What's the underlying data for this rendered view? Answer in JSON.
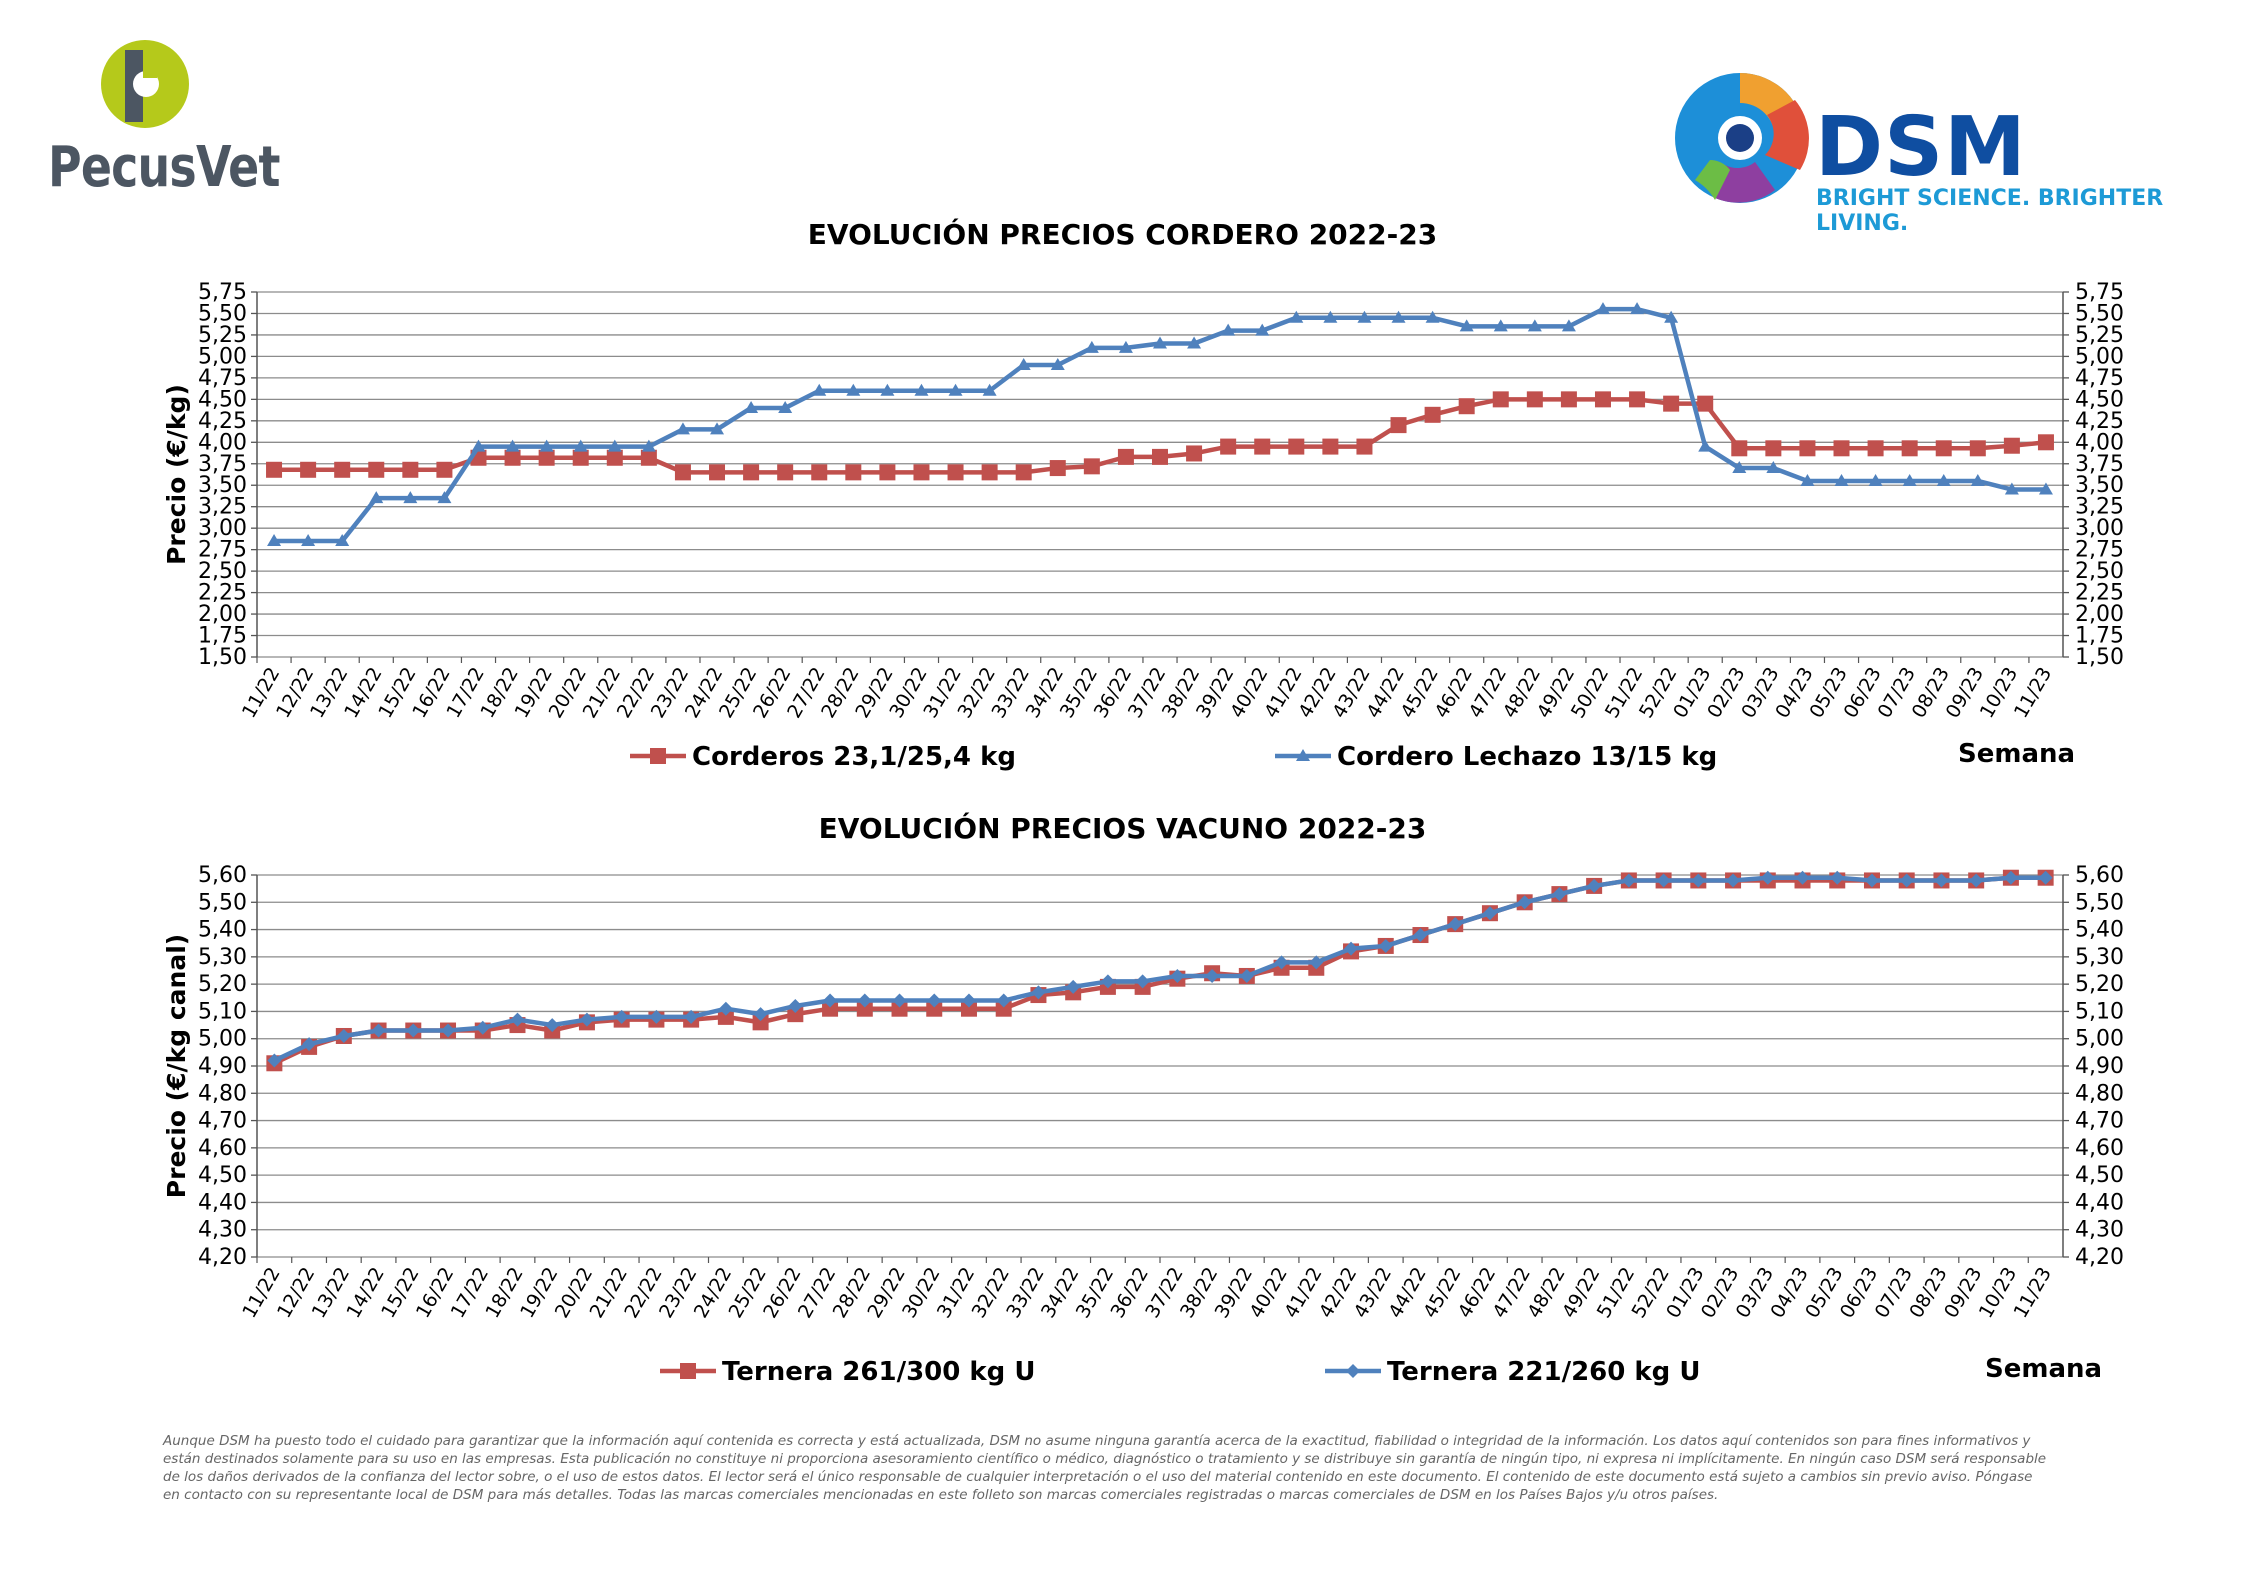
{
  "logos": {
    "pecusvet": "PecusVet",
    "dsm_name": "DSM",
    "dsm_tagline": "BRIGHT SCIENCE. BRIGHTER LIVING.",
    "colors": {
      "pecus_green": "#b5c91b",
      "pecus_gray": "#4c5662",
      "dsm_blue": "#0f4ea1",
      "dsm_light_blue": "#1d9ad6"
    }
  },
  "disclaimer": "Aunque DSM ha puesto todo el cuidado para garantizar que la información aquí contenida es correcta y está actualizada, DSM no asume ninguna garantía acerca de la exactitud, fiabilidad o integridad de la información. Los datos aquí contenidos son para fines informativos y están destinados solamente para su uso en las empresas. Esta publicación no constituye ni proporciona asesoramiento científico o médico, diagnóstico o tratamiento y se distribuye sin garantía de ningún tipo, ni expresa ni implícitamente. En ningún caso DSM será responsable de los daños derivados de la confianza del lector sobre, o el uso de estos datos. El lector será el único responsable de cualquier interpretación o el uso del material contenido en este documento. El contenido de este documento está sujeto a cambios sin previo aviso. Póngase en contacto con su representante local de DSM para más detalles. Todas las marcas comerciales mencionadas en este folleto son marcas comerciales registradas o marcas comerciales de DSM en los Países Bajos y/u otros países.",
  "chart_data": [
    {
      "type": "line",
      "title": "EVOLUCIÓN PRECIOS CORDERO 2022-23",
      "ylabel": "Precio (€/kg)",
      "xlabel": "Semana",
      "ylim": [
        1.5,
        5.75
      ],
      "yticks": [
        "1,50",
        "1,75",
        "2,00",
        "2,25",
        "2,50",
        "2,75",
        "3,00",
        "3,25",
        "3,50",
        "3,75",
        "4,00",
        "4,25",
        "4,50",
        "4,75",
        "5,00",
        "5,25",
        "5,50",
        "5,75"
      ],
      "grid": true,
      "secondary_axis": true,
      "legend_position": "bottom",
      "categories": [
        "11/22",
        "12/22",
        "13/22",
        "14/22",
        "15/22",
        "16/22",
        "17/22",
        "18/22",
        "19/22",
        "20/22",
        "21/22",
        "22/22",
        "23/22",
        "24/22",
        "25/22",
        "26/22",
        "27/22",
        "28/22",
        "29/22",
        "30/22",
        "31/22",
        "32/22",
        "33/22",
        "34/22",
        "35/22",
        "36/22",
        "37/22",
        "38/22",
        "39/22",
        "40/22",
        "41/22",
        "42/22",
        "43/22",
        "44/22",
        "45/22",
        "46/22",
        "47/22",
        "48/22",
        "49/22",
        "50/22",
        "51/22",
        "52/22",
        "01/23",
        "02/23",
        "03/23",
        "04/23",
        "05/23",
        "06/23",
        "07/23",
        "08/23",
        "09/23",
        "10/23",
        "11/23"
      ],
      "series": [
        {
          "name": "Corderos 23,1/25,4 kg",
          "color": "#c0504d",
          "marker": "square",
          "values": [
            3.68,
            3.68,
            3.68,
            3.68,
            3.68,
            3.68,
            3.82,
            3.82,
            3.82,
            3.82,
            3.82,
            3.82,
            3.65,
            3.65,
            3.65,
            3.65,
            3.65,
            3.65,
            3.65,
            3.65,
            3.65,
            3.65,
            3.65,
            3.7,
            3.72,
            3.83,
            3.83,
            3.87,
            3.95,
            3.95,
            3.95,
            3.95,
            3.95,
            4.2,
            4.32,
            4.42,
            4.5,
            4.5,
            4.5,
            4.5,
            4.5,
            4.45,
            4.45,
            3.93,
            3.93,
            3.93,
            3.93,
            3.93,
            3.93,
            3.93,
            3.93,
            3.96,
            4.0
          ]
        },
        {
          "name": "Cordero Lechazo 13/15 kg",
          "color": "#4f81bd",
          "marker": "triangle",
          "values": [
            2.85,
            2.85,
            2.85,
            3.35,
            3.35,
            3.35,
            3.95,
            3.95,
            3.95,
            3.95,
            3.95,
            3.95,
            4.15,
            4.15,
            4.4,
            4.4,
            4.6,
            4.6,
            4.6,
            4.6,
            4.6,
            4.6,
            4.9,
            4.9,
            5.1,
            5.1,
            5.15,
            5.15,
            5.3,
            5.3,
            5.45,
            5.45,
            5.45,
            5.45,
            5.45,
            5.35,
            5.35,
            5.35,
            5.35,
            5.55,
            5.55,
            5.45,
            3.95,
            3.7,
            3.7,
            3.55,
            3.55,
            3.55,
            3.55,
            3.55,
            3.55,
            3.45,
            3.45
          ]
        }
      ]
    },
    {
      "type": "line",
      "title": "EVOLUCIÓN PRECIOS VACUNO 2022-23",
      "ylabel": "Precio (€/kg canal)",
      "xlabel": "Semana",
      "ylim": [
        4.2,
        5.6
      ],
      "yticks": [
        "4,20",
        "4,30",
        "4,40",
        "4,50",
        "4,60",
        "4,70",
        "4,80",
        "4,90",
        "5,00",
        "5,10",
        "5,20",
        "5,30",
        "5,40",
        "5,50",
        "5,60"
      ],
      "grid": true,
      "secondary_axis": true,
      "legend_position": "bottom",
      "categories": [
        "11/22",
        "12/22",
        "13/22",
        "14/22",
        "15/22",
        "16/22",
        "17/22",
        "18/22",
        "19/22",
        "20/22",
        "21/22",
        "22/22",
        "23/22",
        "24/22",
        "25/22",
        "26/22",
        "27/22",
        "28/22",
        "29/22",
        "30/22",
        "31/22",
        "32/22",
        "33/22",
        "34/22",
        "35/22",
        "36/22",
        "37/22",
        "38/22",
        "39/22",
        "40/22",
        "41/22",
        "42/22",
        "43/22",
        "44/22",
        "45/22",
        "46/22",
        "47/22",
        "48/22",
        "49/22",
        "51/22",
        "52/22",
        "01/23",
        "02/23",
        "03/23",
        "04/23",
        "05/23",
        "06/23",
        "07/23",
        "08/23",
        "09/23",
        "10/23",
        "11/23"
      ],
      "series": [
        {
          "name": "Ternera 261/300 kg U",
          "color": "#c0504d",
          "marker": "square",
          "values": [
            4.91,
            4.97,
            5.01,
            5.03,
            5.03,
            5.03,
            5.03,
            5.05,
            5.03,
            5.06,
            5.07,
            5.07,
            5.07,
            5.08,
            5.06,
            5.09,
            5.11,
            5.11,
            5.11,
            5.11,
            5.11,
            5.11,
            5.16,
            5.17,
            5.19,
            5.19,
            5.22,
            5.24,
            5.23,
            5.26,
            5.26,
            5.32,
            5.34,
            5.38,
            5.42,
            5.46,
            5.5,
            5.53,
            5.56,
            5.58,
            5.58,
            5.58,
            5.58,
            5.58,
            5.58,
            5.58,
            5.58,
            5.58,
            5.58,
            5.58,
            5.59,
            5.59
          ]
        },
        {
          "name": "Ternera 221/260 kg U",
          "color": "#4f81bd",
          "marker": "diamond",
          "values": [
            4.92,
            4.98,
            5.01,
            5.03,
            5.03,
            5.03,
            5.04,
            5.07,
            5.05,
            5.07,
            5.08,
            5.08,
            5.08,
            5.11,
            5.09,
            5.12,
            5.14,
            5.14,
            5.14,
            5.14,
            5.14,
            5.14,
            5.17,
            5.19,
            5.21,
            5.21,
            5.23,
            5.23,
            5.23,
            5.28,
            5.28,
            5.33,
            5.34,
            5.38,
            5.42,
            5.46,
            5.5,
            5.53,
            5.56,
            5.58,
            5.58,
            5.58,
            5.58,
            5.59,
            5.59,
            5.59,
            5.58,
            5.58,
            5.58,
            5.58,
            5.59,
            5.59
          ]
        }
      ]
    }
  ]
}
